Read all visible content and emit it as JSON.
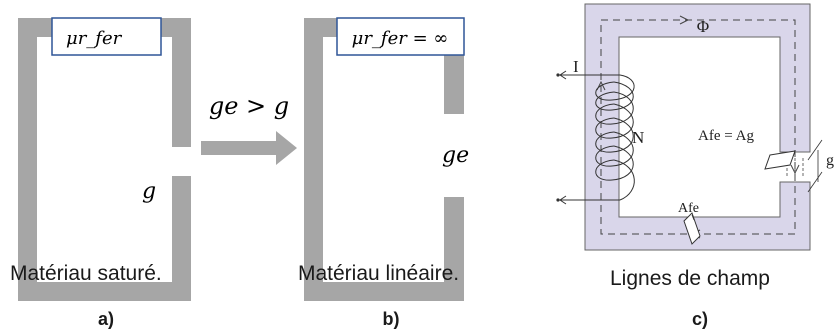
{
  "panel_a": {
    "mu_label": "μr_fer",
    "gap_label": "g",
    "caption": "Matériau saturé.",
    "letter": "a)"
  },
  "arrow": {
    "label": "ge > g"
  },
  "panel_b": {
    "mu_label": "μr_fer = ∞",
    "gap_label": "ge",
    "caption": "Matériau linéaire.",
    "letter": "b)"
  },
  "panel_c": {
    "flux_label": "Φ",
    "current_label": "I",
    "turns_label": "N",
    "area_eq_label": "Afe = Ag",
    "area_label": "Afe",
    "gap_label": "g",
    "caption": "Lignes de champ",
    "letter": "c)"
  },
  "colors": {
    "core_gray": "#a6a6a6",
    "core_fill_c": "#d9d6ea",
    "box_blue": "#2f5597"
  }
}
